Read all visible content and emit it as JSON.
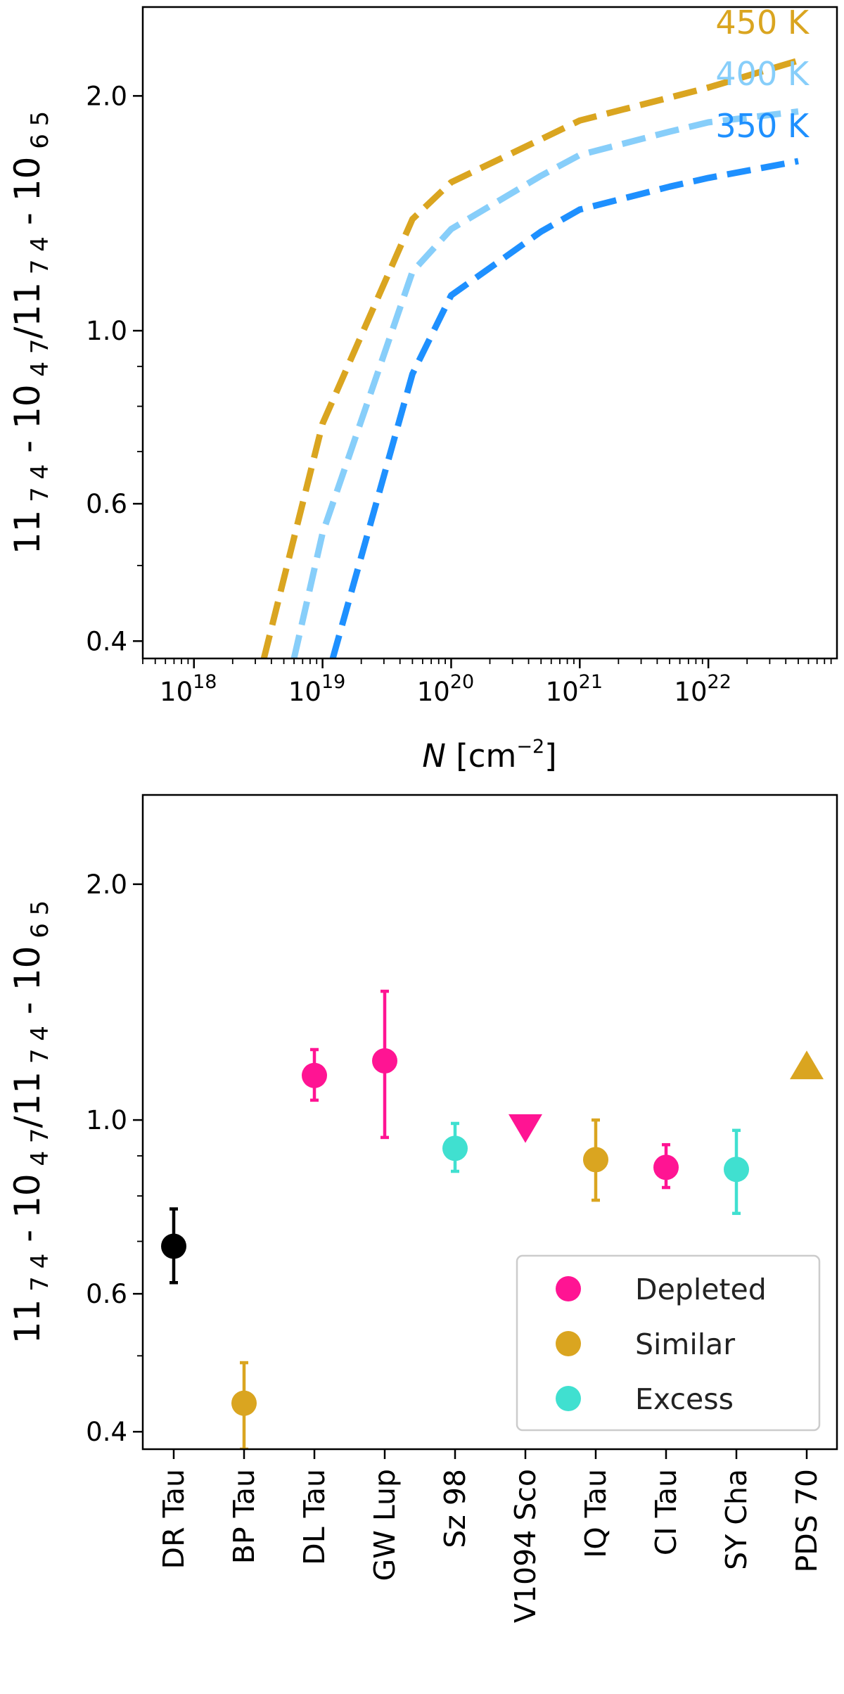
{
  "chart_data": [
    {
      "type": "line",
      "xlabel": "N [cm⁻²]",
      "xlabel_symbol": "N",
      "xlabel_unit": " [cm",
      "xlabel_exp": "−2",
      "xlabel_close": "]",
      "xscale": "log",
      "yscale": "log",
      "xlim": [
        4e+17,
        1e+23
      ],
      "ylim": [
        0.38,
        2.6
      ],
      "x_ticks": [
        {
          "value": 1e+18,
          "base": "10",
          "exp": "18"
        },
        {
          "value": 1e+19,
          "base": "10",
          "exp": "19"
        },
        {
          "value": 1e+20,
          "base": "10",
          "exp": "20"
        },
        {
          "value": 1e+21,
          "base": "10",
          "exp": "21"
        },
        {
          "value": 1e+22,
          "base": "10",
          "exp": "22"
        }
      ],
      "y_ticks": [
        {
          "value": 0.4,
          "label": "0.4"
        },
        {
          "value": 0.6,
          "label": "0.6"
        },
        {
          "value": 1.0,
          "label": "1.0"
        },
        {
          "value": 2.0,
          "label": "2.0"
        }
      ],
      "ylabel_parts": [
        "11",
        "7 4",
        " - 10",
        "4 7",
        "/11",
        "7 4",
        " - 10",
        "6 5"
      ],
      "series": [
        {
          "name": "450 K",
          "color": "#DAA520",
          "x": [
            3.5e+18,
            1e+19,
            5e+19,
            1e+20,
            5e+20,
            1e+21,
            5e+21,
            1e+22,
            5e+22
          ],
          "y": [
            0.38,
            0.76,
            1.39,
            1.55,
            1.76,
            1.86,
            1.99,
            2.05,
            2.22
          ]
        },
        {
          "name": "400 K",
          "color": "#87CEFA",
          "x": [
            6e+18,
            1e+19,
            5e+19,
            1e+20,
            5e+20,
            1e+21,
            5e+21,
            1e+22,
            5e+22
          ],
          "y": [
            0.38,
            0.55,
            1.19,
            1.35,
            1.58,
            1.68,
            1.8,
            1.85,
            1.91
          ]
        },
        {
          "name": "350 K",
          "color": "#1E90FF",
          "x": [
            1.2e+19,
            5e+19,
            1e+20,
            5e+20,
            1e+21,
            5e+21,
            1e+22,
            5e+22
          ],
          "y": [
            0.38,
            0.88,
            1.11,
            1.34,
            1.43,
            1.53,
            1.57,
            1.65
          ]
        }
      ]
    },
    {
      "type": "scatter",
      "ylim": [
        0.38,
        2.6
      ],
      "yscale": "log",
      "y_ticks": [
        {
          "value": 0.4,
          "label": "0.4"
        },
        {
          "value": 0.6,
          "label": "0.6"
        },
        {
          "value": 1.0,
          "label": "1.0"
        },
        {
          "value": 2.0,
          "label": "2.0"
        }
      ],
      "ylabel_parts": [
        "11",
        "7 4",
        " - 10",
        "4 7",
        "/11",
        "7 4",
        " - 10",
        "6 5"
      ],
      "categories": [
        "DR Tau",
        "BP Tau",
        "DL Tau",
        "GW Lup",
        "Sz 98",
        "V1094 Sco",
        "IQ Tau",
        "CI Tau",
        "SY Cha",
        "PDS 70"
      ],
      "points": [
        {
          "y": 0.69,
          "lo": 0.62,
          "hi": 0.77,
          "group": "none",
          "marker": "circle"
        },
        {
          "y": 0.435,
          "lo": 0.38,
          "hi": 0.49,
          "group": "Similar",
          "marker": "circle"
        },
        {
          "y": 1.14,
          "lo": 1.06,
          "hi": 1.23,
          "group": "Depleted",
          "marker": "circle"
        },
        {
          "y": 1.19,
          "lo": 0.95,
          "hi": 1.46,
          "group": "Depleted",
          "marker": "circle"
        },
        {
          "y": 0.92,
          "lo": 0.86,
          "hi": 0.99,
          "group": "Excess",
          "marker": "circle"
        },
        {
          "y": 0.98,
          "lo": null,
          "hi": null,
          "group": "Depleted",
          "marker": "triangle-down"
        },
        {
          "y": 0.89,
          "lo": 0.79,
          "hi": 1.0,
          "group": "Similar",
          "marker": "circle"
        },
        {
          "y": 0.87,
          "lo": 0.82,
          "hi": 0.93,
          "group": "Depleted",
          "marker": "circle"
        },
        {
          "y": 0.865,
          "lo": 0.76,
          "hi": 0.97,
          "group": "Excess",
          "marker": "circle"
        },
        {
          "y": 1.17,
          "lo": null,
          "hi": null,
          "group": "Similar",
          "marker": "triangle-up"
        }
      ],
      "legend": {
        "placement": "lower-right",
        "entries": [
          {
            "name": "Depleted",
            "color": "#FF1493"
          },
          {
            "name": "Similar",
            "color": "#DAA520"
          },
          {
            "name": "Excess",
            "color": "#40E0D0"
          }
        ]
      },
      "group_colors": {
        "Depleted": "#FF1493",
        "Similar": "#DAA520",
        "Excess": "#40E0D0",
        "none": "#000000"
      }
    }
  ]
}
